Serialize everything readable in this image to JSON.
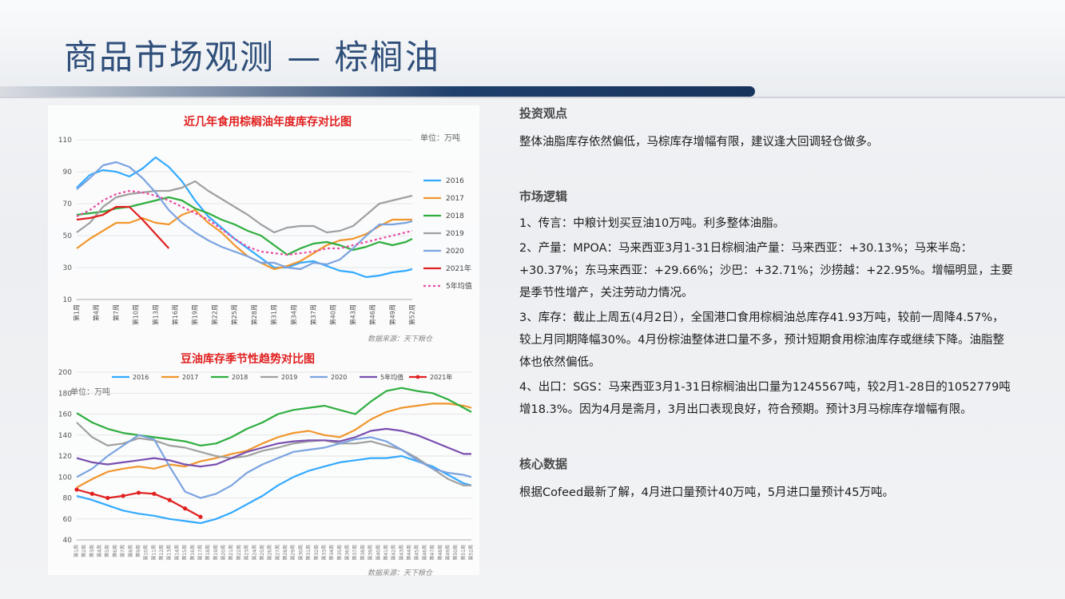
{
  "title": "商品市场观测 — 棕榈油",
  "chart_data": [
    {
      "type": "line",
      "title": "近几年食用棕榈油年度库存对比图",
      "unit": "单位：万吨",
      "source": "数据来源：天下粮仓",
      "ylim": [
        10,
        110
      ],
      "yticks": [
        10,
        30,
        50,
        70,
        90,
        110
      ],
      "xticks": [
        "第1周",
        "第4周",
        "第7周",
        "第10周",
        "第13周",
        "第16周",
        "第19周",
        "第22周",
        "第25周",
        "第28周",
        "第31周",
        "第34周",
        "第37周",
        "第40周",
        "第43周",
        "第46周",
        "第49周",
        "第52周"
      ],
      "legend_position": "right",
      "x": [
        1,
        3,
        5,
        7,
        9,
        11,
        13,
        15,
        17,
        19,
        21,
        23,
        25,
        27,
        29,
        31,
        33,
        35,
        37,
        39,
        41,
        43,
        45,
        47,
        49,
        51,
        52
      ],
      "series": [
        {
          "name": "2016",
          "color": "#33aaff",
          "values": [
            80,
            88,
            91,
            90,
            87,
            92,
            99,
            93,
            84,
            72,
            62,
            55,
            48,
            42,
            36,
            30,
            30,
            33,
            34,
            31,
            28,
            27,
            24,
            25,
            27,
            28,
            29
          ]
        },
        {
          "name": "2017",
          "color": "#f0962d",
          "values": [
            42,
            48,
            53,
            58,
            58,
            61,
            58,
            57,
            63,
            66,
            58,
            52,
            44,
            37,
            33,
            29,
            31,
            34,
            39,
            44,
            47,
            48,
            51,
            56,
            60,
            60,
            60
          ]
        },
        {
          "name": "2018",
          "color": "#2fae3f",
          "values": [
            63,
            64,
            65,
            67,
            68,
            70,
            72,
            74,
            72,
            67,
            64,
            60,
            57,
            53,
            50,
            44,
            38,
            42,
            45,
            46,
            44,
            41,
            43,
            46,
            44,
            46,
            48
          ]
        },
        {
          "name": "2019",
          "color": "#a0a0a0",
          "values": [
            52,
            58,
            68,
            74,
            76,
            77,
            78,
            78,
            80,
            84,
            78,
            73,
            68,
            63,
            57,
            52,
            55,
            56,
            56,
            52,
            53,
            56,
            63,
            70,
            72,
            74,
            75
          ]
        },
        {
          "name": "2020",
          "color": "#7ba3e0",
          "values": [
            79,
            86,
            94,
            96,
            93,
            86,
            77,
            66,
            58,
            52,
            47,
            43,
            40,
            37,
            33,
            33,
            30,
            29,
            33,
            32,
            35,
            42,
            50,
            57,
            57,
            58,
            59
          ]
        },
        {
          "name": "2021年",
          "color": "#e0201f",
          "values": [
            60,
            61,
            63,
            68,
            68,
            60,
            51,
            42,
            null,
            null,
            null,
            null,
            null,
            null,
            null,
            null,
            null,
            null,
            null,
            null,
            null,
            null,
            null,
            null,
            null,
            null,
            null
          ]
        },
        {
          "name": "5年均值",
          "color": "#e84ea4",
          "dashed": true,
          "values": [
            62,
            66,
            72,
            76,
            78,
            77,
            75,
            72,
            68,
            64,
            60,
            54,
            48,
            43,
            40,
            39,
            38,
            39,
            40,
            42,
            42,
            44,
            46,
            48,
            50,
            52,
            53
          ]
        }
      ]
    },
    {
      "type": "line",
      "title": "豆油库存季节性趋势对比图",
      "unit": "单位：万吨",
      "source": "数据来源：天下粮仓",
      "ylim": [
        40,
        200
      ],
      "yticks": [
        40,
        60,
        80,
        100,
        120,
        140,
        160,
        180,
        200
      ],
      "legend_position": "top",
      "x": [
        1,
        3,
        5,
        7,
        9,
        11,
        13,
        15,
        17,
        19,
        21,
        23,
        25,
        27,
        29,
        31,
        33,
        35,
        37,
        39,
        41,
        43,
        45,
        47,
        49,
        51,
        52
      ],
      "series": [
        {
          "name": "2016",
          "color": "#33aaff",
          "values": [
            82,
            78,
            73,
            68,
            65,
            63,
            60,
            58,
            56,
            60,
            66,
            74,
            82,
            92,
            100,
            106,
            110,
            114,
            116,
            118,
            118,
            120,
            115,
            110,
            102,
            94,
            92
          ]
        },
        {
          "name": "2017",
          "color": "#f0962d",
          "values": [
            90,
            98,
            105,
            108,
            110,
            108,
            112,
            110,
            115,
            118,
            122,
            125,
            132,
            138,
            142,
            144,
            140,
            138,
            145,
            155,
            162,
            166,
            168,
            170,
            170,
            168,
            166
          ]
        },
        {
          "name": "2018",
          "color": "#2fae3f",
          "values": [
            161,
            152,
            146,
            142,
            140,
            138,
            136,
            134,
            130,
            132,
            138,
            146,
            152,
            160,
            164,
            166,
            168,
            164,
            160,
            172,
            182,
            185,
            182,
            180,
            174,
            166,
            162
          ]
        },
        {
          "name": "2019",
          "color": "#a0a0a0",
          "values": [
            152,
            138,
            130,
            132,
            137,
            135,
            130,
            128,
            124,
            120,
            118,
            120,
            125,
            128,
            132,
            134,
            135,
            132,
            132,
            134,
            130,
            126,
            118,
            108,
            98,
            92,
            92
          ]
        },
        {
          "name": "2020",
          "color": "#7ba3e0",
          "values": [
            100,
            108,
            120,
            130,
            140,
            136,
            110,
            86,
            80,
            84,
            92,
            104,
            112,
            118,
            124,
            126,
            128,
            132,
            136,
            138,
            134,
            126,
            116,
            108,
            104,
            102,
            100
          ]
        },
        {
          "name": "5年均值",
          "color": "#7a4fb0",
          "values": [
            118,
            114,
            112,
            114,
            116,
            118,
            116,
            112,
            110,
            112,
            118,
            124,
            128,
            132,
            134,
            135,
            135,
            134,
            138,
            144,
            146,
            144,
            140,
            134,
            128,
            122,
            122
          ]
        },
        {
          "name": "2021年",
          "color": "#e0201f",
          "markers": true,
          "values": [
            88,
            84,
            80,
            82,
            85,
            84,
            78,
            70,
            62,
            null,
            null,
            null,
            null,
            null,
            null,
            null,
            null,
            null,
            null,
            null,
            null,
            null,
            null,
            null,
            null,
            null,
            null
          ]
        }
      ]
    }
  ],
  "right_panel": {
    "investment_view_heading": "投资观点",
    "investment_view_text": "整体油脂库存依然偏低，马棕库存增幅有限，建议逢大回调轻仓做多。",
    "market_logic_heading": "市场逻辑",
    "logic_1": "1、传言：中粮计划买豆油10万吨。利多整体油脂。",
    "logic_2": "2、产量：MPOA：马来西亚3月1-31日棕榈油产量：马来西亚：+30.13%；马来半岛：+30.37%；东马来西亚：+29.66%；沙巴：+32.71%；沙捞越：+22.95%。增幅明显，主要是季节性增产，关注劳动力情况。",
    "logic_3": "3、库存：截止上周五(4月2日），全国港口食用棕榈油总库存41.93万吨，较前一周降4.57%，较上月同期降幅30%。4月份棕油整体进口量不多，预计短期食用棕油库存或继续下降。油脂整体也依然偏低。",
    "logic_4": "4、出口：SGS：马来西亚3月1-31日棕榈油出口量为1245567吨，较2月1-28日的1052779吨增18.3%。因为4月是斋月，3月出口表现良好，符合预期。预计3月马棕库存增幅有限。",
    "core_data_heading": "核心数据",
    "core_data_text": "根据Cofeed最新了解，4月进口量预计40万吨，5月进口量预计45万吨。"
  }
}
